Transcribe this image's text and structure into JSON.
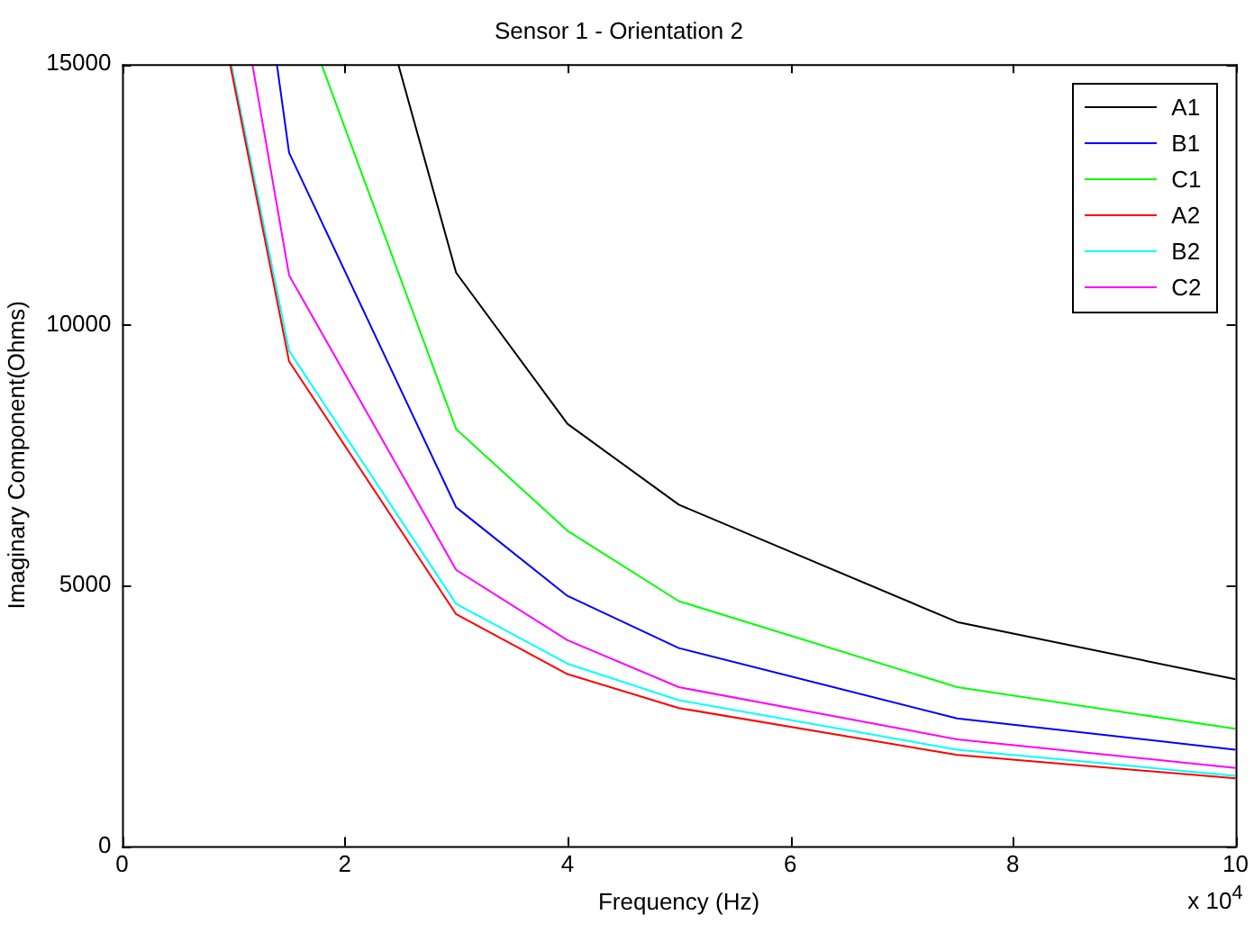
{
  "chart_data": {
    "type": "line",
    "title": "Sensor 1 - Orientation 2",
    "xlabel": "Frequency (Hz)",
    "ylabel": "Imaginary Component(Ohms)",
    "annotations": [
      "x 10$^{4}$"
    ],
    "series": [
      {
        "name": "A1",
        "color": "#000000",
        "x": [
          2.48,
          3,
          4,
          5,
          7.5,
          10
        ],
        "values": [
          15000,
          11000,
          8100,
          6550,
          4300,
          3200
        ]
      },
      {
        "name": "B1",
        "color": "#0000ff",
        "x": [
          1.39,
          1.5,
          3,
          4,
          5,
          7.5,
          10
        ],
        "values": [
          15000,
          13300,
          6500,
          4800,
          3800,
          2450,
          1850
        ]
      },
      {
        "name": "C1",
        "color": "#00ff00",
        "x": [
          1.79,
          3,
          4,
          5,
          7.5,
          10
        ],
        "values": [
          15000,
          8000,
          6050,
          4700,
          3050,
          2250
        ]
      },
      {
        "name": "A2",
        "color": "#ff0000",
        "x": [
          0.97,
          1.5,
          3,
          4,
          5,
          7.5,
          10
        ],
        "values": [
          15000,
          9300,
          4450,
          3300,
          2650,
          1750,
          1300
        ]
      },
      {
        "name": "B2",
        "color": "#00ffff",
        "x": [
          0.98,
          1.5,
          3,
          4,
          5,
          7.5,
          10
        ],
        "values": [
          15000,
          9500,
          4650,
          3500,
          2800,
          1850,
          1350
        ]
      },
      {
        "name": "C2",
        "color": "#ff00ff",
        "x": [
          1.17,
          1.5,
          3,
          4,
          5,
          7.5,
          10
        ],
        "values": [
          15000,
          10950,
          5300,
          3950,
          3050,
          2050,
          1500
        ]
      }
    ],
    "xlim": [
      0,
      10
    ],
    "xticks": [
      0,
      2,
      4,
      6,
      8,
      10
    ],
    "ylim": [
      0,
      15000
    ],
    "yticks": [
      0,
      5000,
      10000,
      15000
    ],
    "grid": false,
    "legend": "top right",
    "marker": "none",
    "line_style": "solid"
  }
}
